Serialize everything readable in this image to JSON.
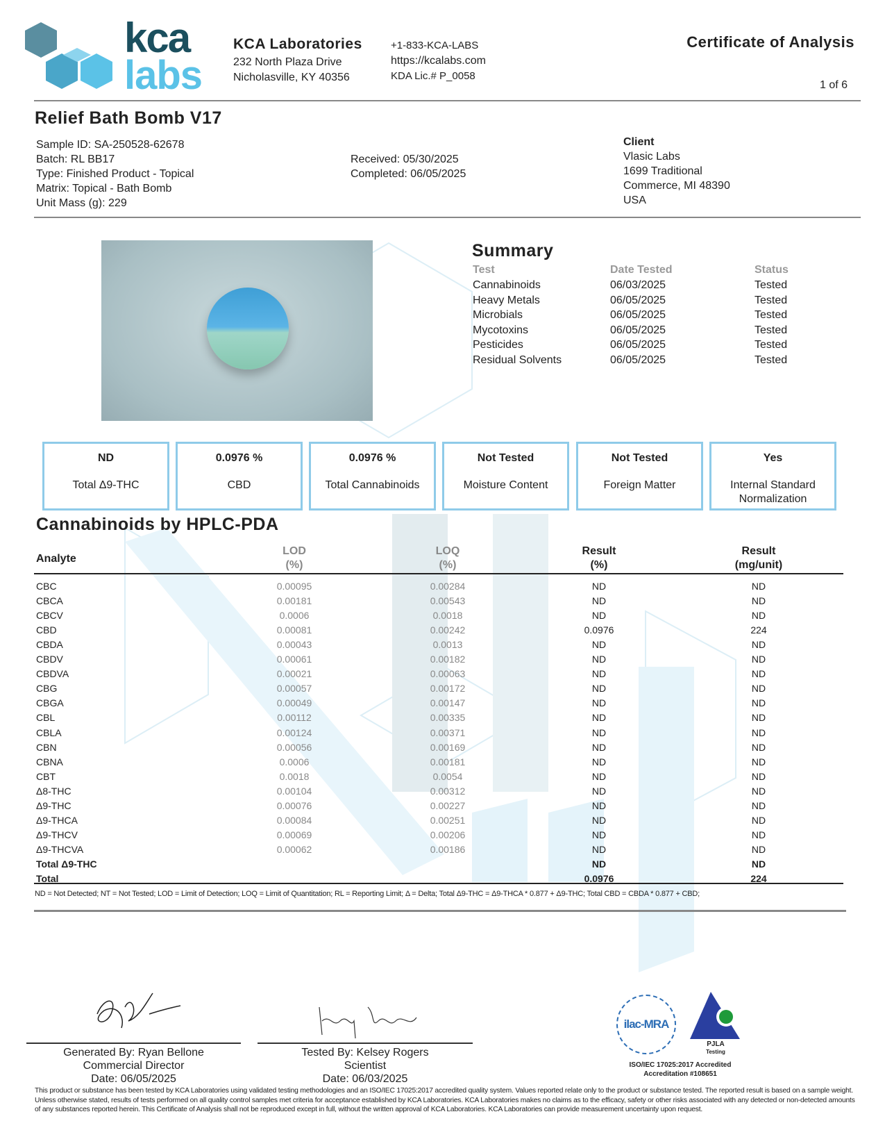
{
  "logo": {
    "top": "kca",
    "bottom": "labs"
  },
  "lab": {
    "name": "KCA Laboratories",
    "address1": "232 North Plaza Drive",
    "address2": "Nicholasville, KY 40356",
    "phone": "+1-833-KCA-LABS",
    "website": "https://kcalabs.com",
    "license": "KDA Lic.# P_0058"
  },
  "doc": {
    "title": "Certificate of Analysis",
    "page": "1 of 6"
  },
  "sample": {
    "name": "Relief Bath Bomb V17",
    "id": "Sample ID: SA-250528-62678",
    "batch": "Batch: RL BB17",
    "type": "Type: Finished Product - Topical",
    "matrix": "Matrix: Topical - Bath Bomb",
    "unit_mass": "Unit Mass (g): 229",
    "received": "Received: 05/30/2025",
    "completed": "Completed: 06/05/2025"
  },
  "client": {
    "label": "Client",
    "name": "Vlasic Labs",
    "street": "1699 Traditional",
    "city": "Commerce, MI 48390",
    "country": "USA"
  },
  "summary": {
    "title": "Summary",
    "headers": [
      "Test",
      "Date Tested",
      "Status"
    ],
    "rows": [
      [
        "Cannabinoids",
        "06/03/2025",
        "Tested"
      ],
      [
        "Heavy Metals",
        "06/05/2025",
        "Tested"
      ],
      [
        "Microbials",
        "06/05/2025",
        "Tested"
      ],
      [
        "Mycotoxins",
        "06/05/2025",
        "Tested"
      ],
      [
        "Pesticides",
        "06/05/2025",
        "Tested"
      ],
      [
        "Residual Solvents",
        "06/05/2025",
        "Tested"
      ]
    ]
  },
  "boxes": [
    {
      "value": "ND",
      "label": "Total Δ9-THC"
    },
    {
      "value": "0.0976 %",
      "label": "CBD"
    },
    {
      "value": "0.0976 %",
      "label": "Total Cannabinoids"
    },
    {
      "value": "Not Tested",
      "label": "Moisture Content"
    },
    {
      "value": "Not Tested",
      "label": "Foreign Matter"
    },
    {
      "value": "Yes",
      "label": "Internal Standard Normalization"
    }
  ],
  "cannabinoids": {
    "title": "Cannabinoids by HPLC-PDA",
    "headers": {
      "analyte": "Analyte",
      "lod": "LOD",
      "lod_unit": "(%)",
      "loq": "LOQ",
      "loq_unit": "(%)",
      "result": "Result",
      "result_unit": "(%)",
      "mg": "Result",
      "mg_unit": "(mg/unit)"
    },
    "rows": [
      [
        "CBC",
        "0.00095",
        "0.00284",
        "ND",
        "ND"
      ],
      [
        "CBCA",
        "0.00181",
        "0.00543",
        "ND",
        "ND"
      ],
      [
        "CBCV",
        "0.0006",
        "0.0018",
        "ND",
        "ND"
      ],
      [
        "CBD",
        "0.00081",
        "0.00242",
        "0.0976",
        "224"
      ],
      [
        "CBDA",
        "0.00043",
        "0.0013",
        "ND",
        "ND"
      ],
      [
        "CBDV",
        "0.00061",
        "0.00182",
        "ND",
        "ND"
      ],
      [
        "CBDVA",
        "0.00021",
        "0.00063",
        "ND",
        "ND"
      ],
      [
        "CBG",
        "0.00057",
        "0.00172",
        "ND",
        "ND"
      ],
      [
        "CBGA",
        "0.00049",
        "0.00147",
        "ND",
        "ND"
      ],
      [
        "CBL",
        "0.00112",
        "0.00335",
        "ND",
        "ND"
      ],
      [
        "CBLA",
        "0.00124",
        "0.00371",
        "ND",
        "ND"
      ],
      [
        "CBN",
        "0.00056",
        "0.00169",
        "ND",
        "ND"
      ],
      [
        "CBNA",
        "0.0006",
        "0.00181",
        "ND",
        "ND"
      ],
      [
        "CBT",
        "0.0018",
        "0.0054",
        "ND",
        "ND"
      ],
      [
        "Δ8-THC",
        "0.00104",
        "0.00312",
        "ND",
        "ND"
      ],
      [
        "Δ9-THC",
        "0.00076",
        "0.00227",
        "ND",
        "ND"
      ],
      [
        "Δ9-THCA",
        "0.00084",
        "0.00251",
        "ND",
        "ND"
      ],
      [
        "Δ9-THCV",
        "0.00069",
        "0.00206",
        "ND",
        "ND"
      ],
      [
        "Δ9-THCVA",
        "0.00062",
        "0.00186",
        "ND",
        "ND"
      ]
    ],
    "totals": [
      [
        "Total Δ9-THC",
        "",
        "",
        "ND",
        "ND"
      ],
      [
        "Total",
        "",
        "",
        "0.0976",
        "224"
      ]
    ],
    "footnote": "ND = Not Detected; NT = Not Tested; LOD = Limit of Detection; LOQ = Limit of Quantitation; RL = Reporting Limit; Δ = Delta; Total Δ9-THC = Δ9-THCA * 0.877 + Δ9-THC; Total CBD = CBDA * 0.877 + CBD;"
  },
  "signatures": [
    {
      "line1": "Generated By: Ryan Bellone",
      "line2": "Commercial Director",
      "line3": "Date: 06/05/2025"
    },
    {
      "line1": "Tested By: Kelsey Rogers",
      "line2": "Scientist",
      "line3": "Date: 06/03/2025"
    }
  ],
  "accreditation": {
    "ilac": "ilac-MRA",
    "pjla": "PJLA",
    "pjla_sub": "Testing",
    "line1": "ISO/IEC 17025:2017 Accredited",
    "line2": "Accreditation #108651"
  },
  "disclaimer": "This product or substance has been tested by KCA Laboratories using validated testing methodologies and an ISO/IEC 17025:2017 accredited quality system. Values reported relate only to the product or substance tested. The reported result is based on a sample weight. Unless otherwise stated, results of tests performed on all quality control samples met criteria for acceptance established by KCA Laboratories. KCA Laboratories makes no claims as to the efficacy, safety or other risks associated with any detected or non-detected amounts of any substances reported herein. This Certificate of Analysis shall not be reproduced except in full, without the written approval of KCA Laboratories. KCA Laboratories can provide measurement uncertainty upon request.",
  "colors": {
    "brand_dark": "#1b4f5e",
    "brand_light": "#5bc2e7",
    "box_border": "#8fcbe9"
  }
}
